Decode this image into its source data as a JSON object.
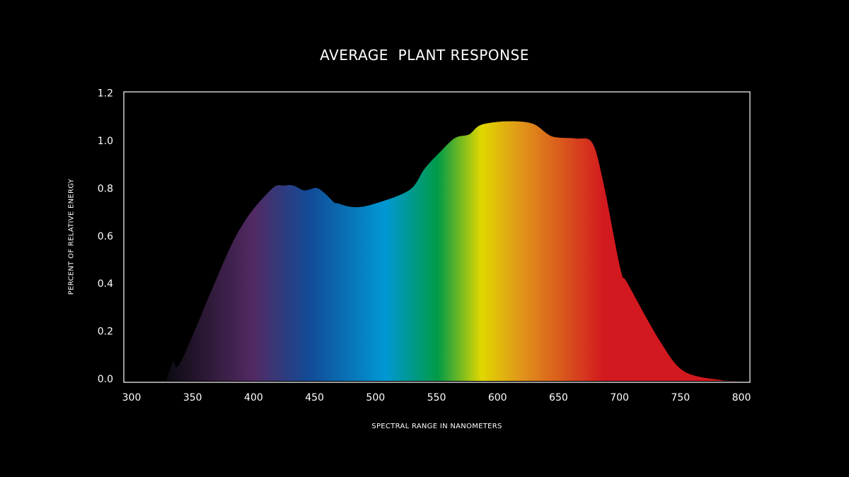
{
  "chart_data": {
    "type": "area",
    "title": "AVERAGE  PLANT RESPONSE",
    "xlabel": "SPECTRAL RANGE IN NANOMETERS",
    "ylabel": "PERCENT OF RELATIVE ENERGY",
    "xlim": [
      300,
      800
    ],
    "ylim": [
      0,
      1.2
    ],
    "xticks": [
      "300",
      "350",
      "400",
      "450",
      "500",
      "550",
      "600",
      "650",
      "700",
      "750",
      "800"
    ],
    "yticks": [
      "0.0",
      "0.2",
      "0.4",
      "0.6",
      "0.8",
      "1.0",
      "1.2"
    ],
    "grid": false,
    "legend": "none",
    "series": [
      {
        "x": [
          326,
          328.4,
          334.2,
          341.8,
          384.7,
          413.7,
          425.3,
          432.8,
          441.5,
          451.4,
          457.8,
          465.9,
          469.4,
          481,
          496.6,
          527.4,
          540.1,
          551.7,
          565.1,
          576.7,
          586.5,
          608,
          628.9,
          644.5,
          663.7,
          677.6,
          686.9,
          700.8,
          706.6,
          733.3,
          753,
          783.7,
          800
        ],
        "y": [
          0,
          0.005,
          0.08,
          0.095,
          0.6,
          0.8,
          0.82,
          0.82,
          0.8,
          0.81,
          0.79,
          0.75,
          0.745,
          0.73,
          0.74,
          0.8,
          0.89,
          0.955,
          1.02,
          1.035,
          1.075,
          1.09,
          1.08,
          1.027,
          1.018,
          1.0,
          0.83,
          0.47,
          0.41,
          0.166,
          0.04,
          0.003,
          0
        ]
      }
    ],
    "fill_gradient": [
      {
        "nm": 328,
        "color": "#0c0a10"
      },
      {
        "nm": 400,
        "color": "#522a63"
      },
      {
        "nm": 445,
        "color": "#124a96"
      },
      {
        "nm": 508,
        "color": "#0098d4"
      },
      {
        "nm": 551,
        "color": "#009a48"
      },
      {
        "nm": 587,
        "color": "#e1d700"
      },
      {
        "nm": 620,
        "color": "#e0941a"
      },
      {
        "nm": 687,
        "color": "#d2191f"
      },
      {
        "nm": 800,
        "color": "#d2191f"
      }
    ],
    "axis_color": "#ffffff",
    "background": "#000000"
  }
}
